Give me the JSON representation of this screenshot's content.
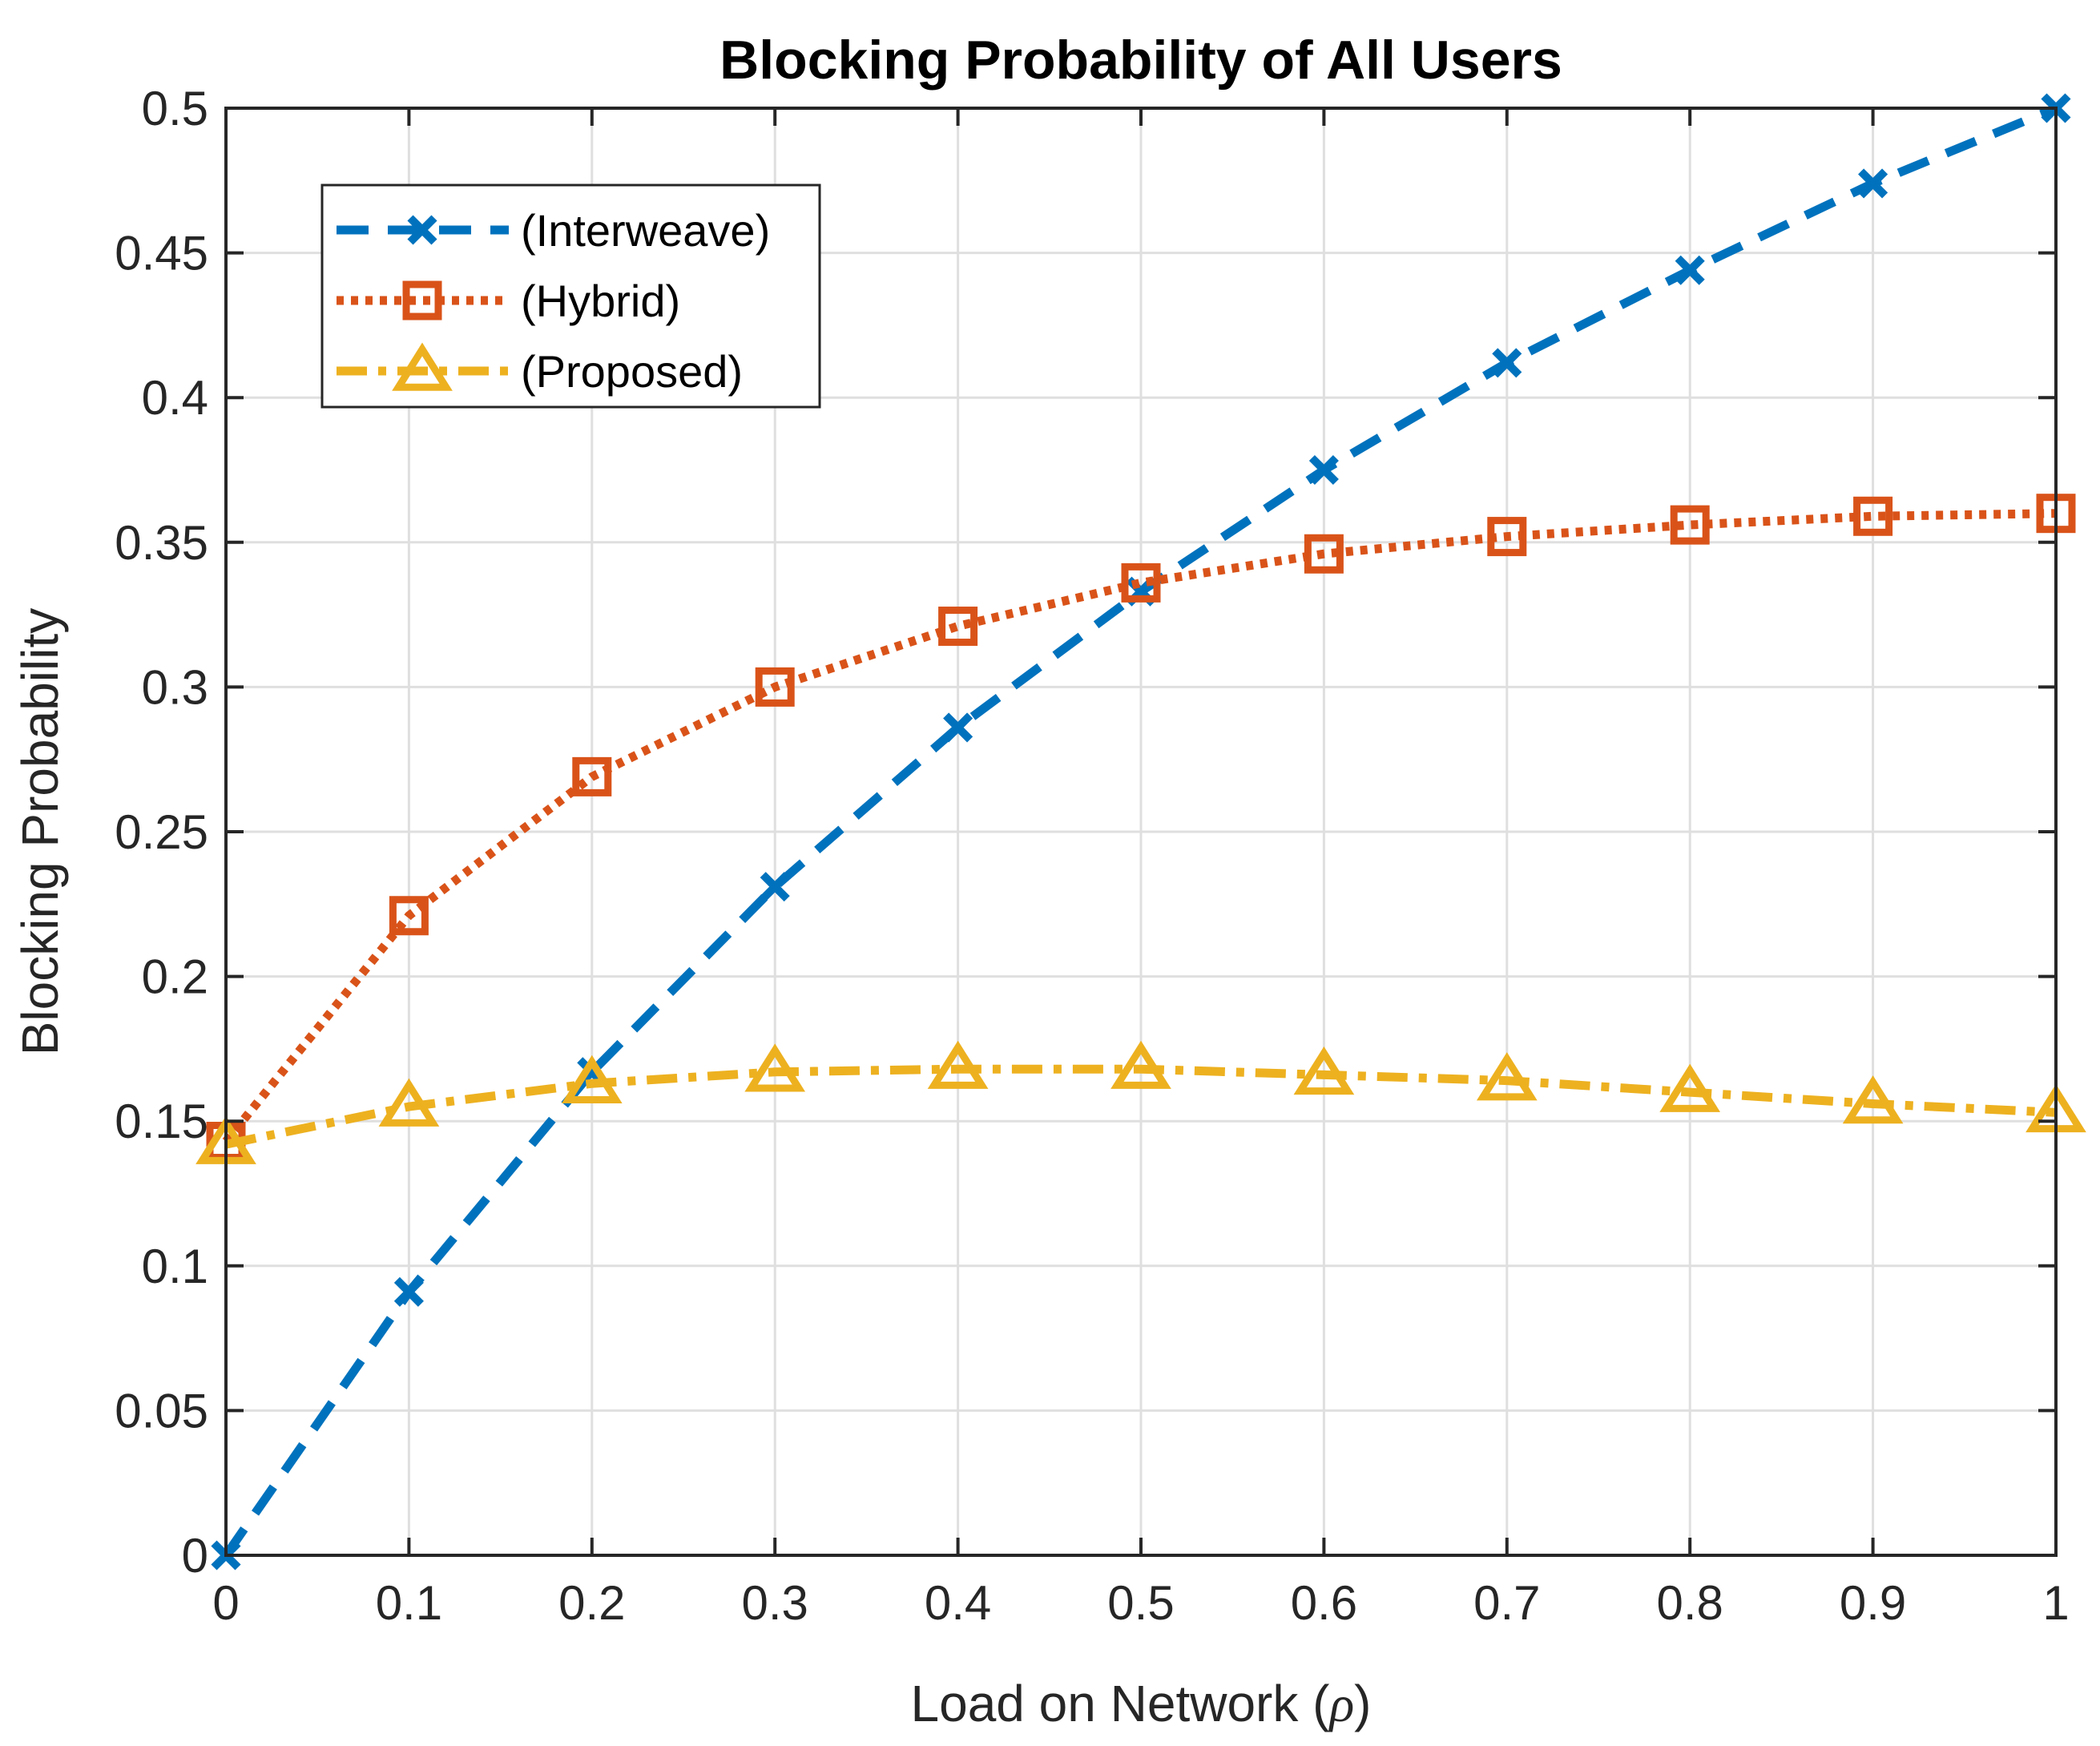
{
  "chart_data": {
    "type": "line",
    "title": "Blocking Probability of All Users",
    "xlabel_main": "Load on Network (",
    "xlabel_symbol": "ρ",
    "xlabel_close": ")",
    "ylabel": "Blocking Probability",
    "xlim": [
      0,
      1
    ],
    "ylim": [
      0,
      0.5
    ],
    "x": [
      0,
      0.1,
      0.2,
      0.3,
      0.4,
      0.5,
      0.6,
      0.7,
      0.8,
      0.9,
      1
    ],
    "x_tick_labels": [
      "0",
      "0.1",
      "0.2",
      "0.3",
      "0.4",
      "0.5",
      "0.6",
      "0.7",
      "0.8",
      "0.9",
      "1"
    ],
    "y_ticks": [
      0,
      0.05,
      0.1,
      0.15,
      0.2,
      0.25,
      0.3,
      0.35,
      0.4,
      0.45,
      0.5
    ],
    "y_tick_labels": [
      "0",
      "0.05",
      "0.1",
      "0.15",
      "0.2",
      "0.25",
      "0.3",
      "0.35",
      "0.4",
      "0.45",
      "0.5"
    ],
    "grid": true,
    "legend_position": "top-left",
    "series": [
      {
        "name": "(Interweave)",
        "color": "#0072BD",
        "line_style": "dashed",
        "marker": "x",
        "values": [
          0.0,
          0.091,
          0.167,
          0.231,
          0.286,
          0.333,
          0.375,
          0.412,
          0.444,
          0.474,
          0.5
        ]
      },
      {
        "name": "(Hybrid)",
        "color": "#D95319",
        "line_style": "dotted",
        "marker": "square",
        "values": [
          0.143,
          0.221,
          0.269,
          0.3,
          0.321,
          0.336,
          0.346,
          0.352,
          0.356,
          0.359,
          0.36
        ]
      },
      {
        "name": "(Proposed)",
        "color": "#EDB120",
        "line_style": "dashdot",
        "marker": "triangle",
        "values": [
          0.142,
          0.155,
          0.163,
          0.167,
          0.168,
          0.168,
          0.166,
          0.164,
          0.16,
          0.156,
          0.153
        ]
      }
    ]
  }
}
